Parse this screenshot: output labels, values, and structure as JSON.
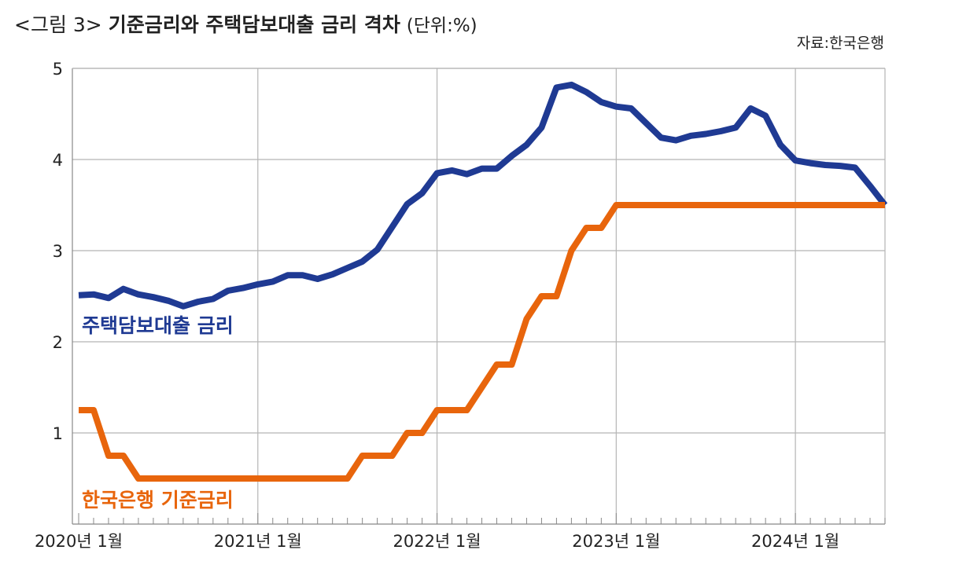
{
  "header": {
    "title_prefix": "<그림 3>",
    "title_main": "기준금리와 주택담보대출 금리 격차",
    "title_unit": "(단위:%)",
    "source": "자료:한국은행"
  },
  "colors": {
    "mortgage": "#1f3a93",
    "base": "#e8650c",
    "grid": "#b5b5b5",
    "axis": "#888888"
  },
  "chart_data": {
    "type": "line",
    "title": "기준금리와 주택담보대출 금리 격차",
    "unit": "(단위:%)",
    "xlabel": "",
    "ylabel": "",
    "ylim": [
      0,
      5
    ],
    "yticks": [
      1,
      2,
      3,
      4,
      5
    ],
    "grid": true,
    "x_start": "2020-01",
    "x_end": "2024-07",
    "x_tick_labels": [
      "2020년 1월",
      "2021년 1월",
      "2022년 1월",
      "2023년 1월",
      "2024년 1월"
    ],
    "series": [
      {
        "name": "주택담보대출 금리",
        "color": "#1f3a93",
        "values": [
          2.51,
          2.52,
          2.48,
          2.58,
          2.52,
          2.49,
          2.45,
          2.39,
          2.44,
          2.47,
          2.56,
          2.59,
          2.63,
          2.66,
          2.73,
          2.73,
          2.69,
          2.74,
          2.81,
          2.88,
          3.01,
          3.26,
          3.51,
          3.63,
          3.85,
          3.88,
          3.84,
          3.9,
          3.9,
          4.04,
          4.16,
          4.35,
          4.79,
          4.82,
          4.74,
          4.63,
          4.58,
          4.56,
          4.4,
          4.24,
          4.21,
          4.26,
          4.28,
          4.31,
          4.35,
          4.56,
          4.48,
          4.16,
          3.99,
          3.96,
          3.94,
          3.93,
          3.91,
          3.71,
          3.5
        ]
      },
      {
        "name": "한국은행 기준금리",
        "color": "#e8650c",
        "values": [
          1.25,
          1.25,
          0.75,
          0.75,
          0.5,
          0.5,
          0.5,
          0.5,
          0.5,
          0.5,
          0.5,
          0.5,
          0.5,
          0.5,
          0.5,
          0.5,
          0.5,
          0.5,
          0.5,
          0.75,
          0.75,
          0.75,
          1.0,
          1.0,
          1.25,
          1.25,
          1.25,
          1.5,
          1.75,
          1.75,
          2.25,
          2.5,
          2.5,
          3.0,
          3.25,
          3.25,
          3.5,
          3.5,
          3.5,
          3.5,
          3.5,
          3.5,
          3.5,
          3.5,
          3.5,
          3.5,
          3.5,
          3.5,
          3.5,
          3.5,
          3.5,
          3.5,
          3.5,
          3.5,
          3.5
        ]
      }
    ]
  }
}
